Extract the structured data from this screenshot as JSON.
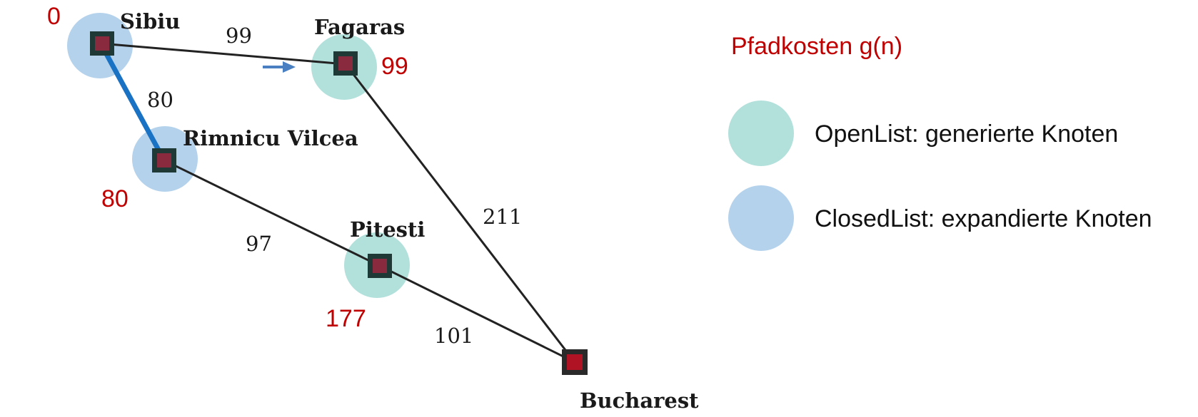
{
  "colors": {
    "open_list": "#b2e0db",
    "closed_list": "#b4d2ec",
    "node_border": "#1f3a36",
    "node_fill": "#8a2a3e",
    "goal_border": "#2a2a2a",
    "goal_fill": "#b01424",
    "edge": "#222222",
    "active_edge": "#1a72c4",
    "arrow": "#4a7fc1",
    "path_cost_text": "#c00000"
  },
  "nodes": {
    "sibiu": {
      "name": "Sibiu",
      "g": "0",
      "state": "closed"
    },
    "fagaras": {
      "name": "Fagaras",
      "g": "99",
      "state": "open"
    },
    "rimnicu": {
      "name": "Rimnicu Vilcea",
      "g": "80",
      "state": "closed"
    },
    "pitesti": {
      "name": "Pitesti",
      "g": "177",
      "state": "open"
    },
    "bucharest": {
      "name": "Bucharest",
      "state": "goal"
    }
  },
  "edges": {
    "sibiu_fagaras": "99",
    "sibiu_rimnicu": "80",
    "rimnicu_pitesti": "97",
    "fagaras_bucharest": "211",
    "pitesti_bucharest": "101"
  },
  "legend": {
    "title": "Pfadkosten g(n)",
    "open_label": "OpenList: generierte Knoten",
    "closed_label": "ClosedList: expandierte Knoten"
  }
}
